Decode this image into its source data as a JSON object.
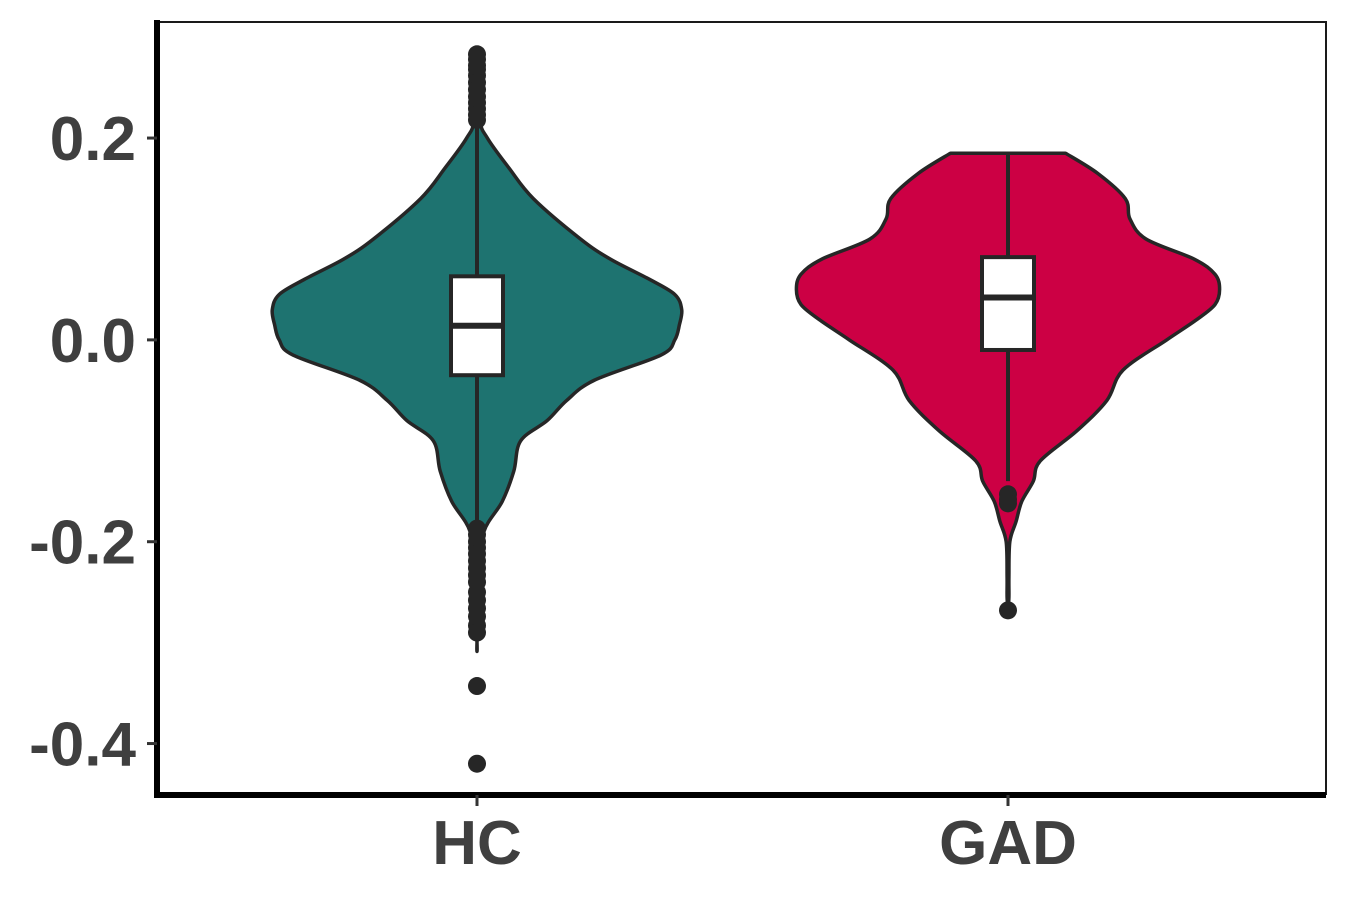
{
  "chart_data": {
    "type": "violin",
    "title": "",
    "xlabel": "",
    "ylabel": "",
    "categories": [
      "HC",
      "GAD"
    ],
    "ylim": [
      -0.45,
      0.315
    ],
    "yticks": [
      {
        "value": 0.2,
        "label": "0.2"
      },
      {
        "value": 0.0,
        "label": "0.0"
      },
      {
        "value": -0.2,
        "label": "-0.2"
      },
      {
        "value": -0.4,
        "label": "-0.4"
      }
    ],
    "grid": false,
    "legend": "none",
    "groups": [
      {
        "category": "HC",
        "color": "#1e7370",
        "box": {
          "q1": -0.035,
          "median": 0.014,
          "q3": 0.063,
          "whisker_low": -0.185,
          "whisker_high": 0.215
        },
        "outliers": [
          0.283,
          0.278,
          0.272,
          0.268,
          0.262,
          0.255,
          0.248,
          0.241,
          0.235,
          0.229,
          0.223,
          0.218,
          -0.187,
          -0.193,
          -0.2,
          -0.206,
          -0.212,
          -0.219,
          -0.226,
          -0.233,
          -0.24,
          -0.25,
          -0.258,
          -0.266,
          -0.274,
          -0.283,
          -0.29,
          -0.343,
          -0.42
        ],
        "density": [
          [
            0.283,
            0.0
          ],
          [
            0.22,
            0.012
          ],
          [
            0.2,
            0.045
          ],
          [
            0.17,
            0.14
          ],
          [
            0.14,
            0.245
          ],
          [
            0.1,
            0.45
          ],
          [
            0.08,
            0.58
          ],
          [
            0.06,
            0.75
          ],
          [
            0.045,
            0.86
          ],
          [
            0.03,
            0.89
          ],
          [
            0.015,
            0.88
          ],
          [
            0.0,
            0.86
          ],
          [
            -0.015,
            0.8
          ],
          [
            -0.04,
            0.51
          ],
          [
            -0.06,
            0.39
          ],
          [
            -0.08,
            0.305
          ],
          [
            -0.1,
            0.19
          ],
          [
            -0.13,
            0.16
          ],
          [
            -0.16,
            0.11
          ],
          [
            -0.19,
            0.03
          ],
          [
            -0.23,
            0.012
          ],
          [
            -0.3,
            0.0
          ]
        ]
      },
      {
        "category": "GAD",
        "color": "#cc0044",
        "box": {
          "q1": -0.01,
          "median": 0.042,
          "q3": 0.082,
          "whisker_low": -0.14,
          "whisker_high": 0.185
        },
        "outliers": [
          -0.153,
          -0.158,
          -0.162,
          -0.268
        ],
        "density": [
          [
            0.185,
            0.25
          ],
          [
            0.165,
            0.39
          ],
          [
            0.14,
            0.51
          ],
          [
            0.12,
            0.53
          ],
          [
            0.1,
            0.6
          ],
          [
            0.08,
            0.81
          ],
          [
            0.065,
            0.9
          ],
          [
            0.05,
            0.92
          ],
          [
            0.035,
            0.9
          ],
          [
            0.02,
            0.82
          ],
          [
            0.0,
            0.69
          ],
          [
            -0.03,
            0.5
          ],
          [
            -0.06,
            0.43
          ],
          [
            -0.09,
            0.3
          ],
          [
            -0.12,
            0.14
          ],
          [
            -0.14,
            0.11
          ],
          [
            -0.16,
            0.06
          ],
          [
            -0.18,
            0.035
          ],
          [
            -0.2,
            0.008
          ],
          [
            -0.235,
            0.004
          ],
          [
            -0.255,
            0.004
          ],
          [
            -0.268,
            0.0
          ]
        ]
      }
    ]
  }
}
